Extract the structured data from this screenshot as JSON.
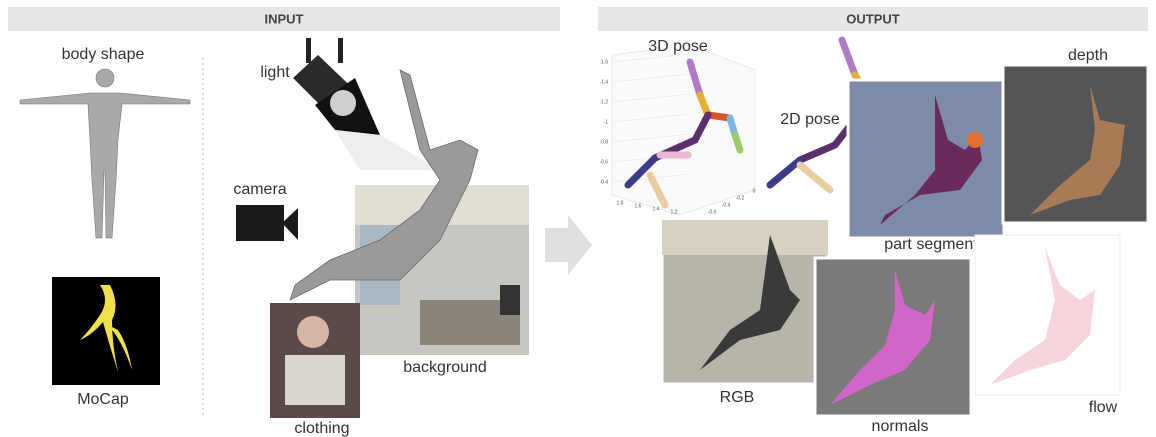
{
  "input": {
    "title": "INPUT",
    "body_shape": "body shape",
    "mocap": "MoCap",
    "light": "light",
    "camera": "camera",
    "background": "background",
    "clothing": "clothing"
  },
  "output": {
    "title": "OUTPUT",
    "pose_3d": "3D pose",
    "pose_2d": "2D pose",
    "depth": "depth",
    "part_segments": "part segments",
    "rgb": "RGB",
    "normals": "normals",
    "flow": "flow"
  },
  "pose_plot": {
    "yticks": [
      "-1.6",
      "-1.4",
      "-1.2",
      "-1",
      "-0.8",
      "-0.6",
      "-0.4"
    ],
    "xticks": [
      "1.8",
      "1.6",
      "1.4",
      "1.2"
    ],
    "zticks": [
      "-0.6",
      "-0.4",
      "-0.2",
      "0"
    ]
  }
}
